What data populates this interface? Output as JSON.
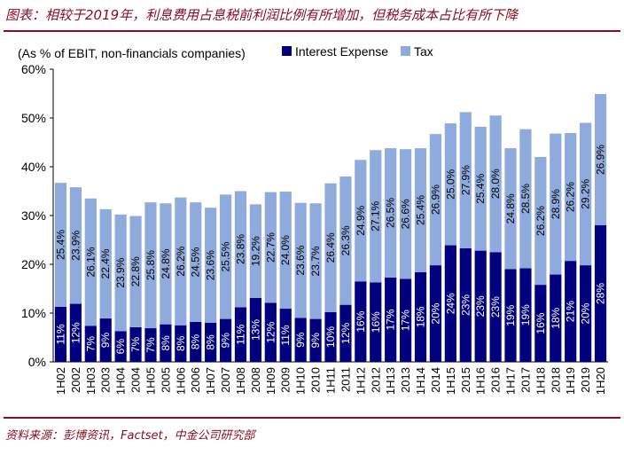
{
  "header": {
    "title": "图表：相较于2019年，利息费用占息税前利润比例有所增加，但税务成本占比有所下降"
  },
  "footer": {
    "source": "资料来源：彭博资讯，Factset，中金公司研究部"
  },
  "chart_data": {
    "type": "bar",
    "stacked": true,
    "ylabel": "(As % of EBIT, non-financials companies)",
    "ylim": [
      0,
      60
    ],
    "yticks": [
      "0%",
      "10%",
      "20%",
      "30%",
      "40%",
      "50%",
      "60%"
    ],
    "grid": false,
    "legend_position": "top",
    "categories": [
      "1H02",
      "2002",
      "1H03",
      "2003",
      "1H04",
      "2004",
      "1H05",
      "2005",
      "1H06",
      "2006",
      "1H07",
      "2007",
      "1H08",
      "2008",
      "1H09",
      "2009",
      "1H10",
      "2010",
      "1H11",
      "2011",
      "1H12",
      "2012",
      "1H13",
      "2013",
      "1H14",
      "2014",
      "1H15",
      "2015",
      "1H16",
      "2016",
      "1H17",
      "2017",
      "1H18",
      "2018",
      "1H19",
      "2019",
      "1H20"
    ],
    "series": [
      {
        "name": "Interest Expense",
        "color": "#00007f",
        "values": [
          11.3,
          11.9,
          7.4,
          8.9,
          6.3,
          7.1,
          6.9,
          7.7,
          7.5,
          8.2,
          8.0,
          8.8,
          11.2,
          13.1,
          12.1,
          10.9,
          9.0,
          8.8,
          10.2,
          11.7,
          16.5,
          16.3,
          17.3,
          17.0,
          18.4,
          19.8,
          23.9,
          23.3,
          22.8,
          22.5,
          19.0,
          19.2,
          15.8,
          17.9,
          20.7,
          19.8,
          28.0
        ],
        "labels": [
          "11%",
          "12%",
          "7%",
          "9%",
          "6%",
          "7%",
          "7%",
          "8%",
          "8%",
          "8%",
          "8%",
          "9%",
          "11%",
          "13%",
          "12%",
          "11%",
          "9%",
          "9%",
          "10%",
          "12%",
          "16%",
          "16%",
          "17%",
          "17%",
          "18%",
          "20%",
          "24%",
          "23%",
          "23%",
          "23%",
          "19%",
          "19%",
          "16%",
          "18%",
          "21%",
          "20%",
          "28%"
        ]
      },
      {
        "name": "Tax",
        "color": "#8faadc",
        "values": [
          25.4,
          23.9,
          26.1,
          22.4,
          23.9,
          22.8,
          25.8,
          24.8,
          26.2,
          24.5,
          23.6,
          25.5,
          23.8,
          19.2,
          22.7,
          24.0,
          23.6,
          23.7,
          26.4,
          26.3,
          24.9,
          27.1,
          26.5,
          26.6,
          25.4,
          26.9,
          25.0,
          27.9,
          25.4,
          28.0,
          24.8,
          28.5,
          26.2,
          28.9,
          26.2,
          29.2,
          26.9
        ],
        "labels": [
          "25.4%",
          "23.9%",
          "26.1%",
          "22.4%",
          "23.9%",
          "22.8%",
          "25.8%",
          "24.8%",
          "26.2%",
          "24.5%",
          "23.6%",
          "25.5%",
          "23.8%",
          "19.2%",
          "22.7%",
          "24.0%",
          "23.6%",
          "23.7%",
          "26.4%",
          "26.3%",
          "24.9%",
          "27.1%",
          "26.5%",
          "26.6%",
          "25.4%",
          "26.9%",
          "25.0%",
          "27.9%",
          "25.4%",
          "28.0%",
          "24.8%",
          "28.5%",
          "26.2%",
          "28.9%",
          "26.2%",
          "29.2%",
          "26.9%"
        ]
      }
    ]
  }
}
